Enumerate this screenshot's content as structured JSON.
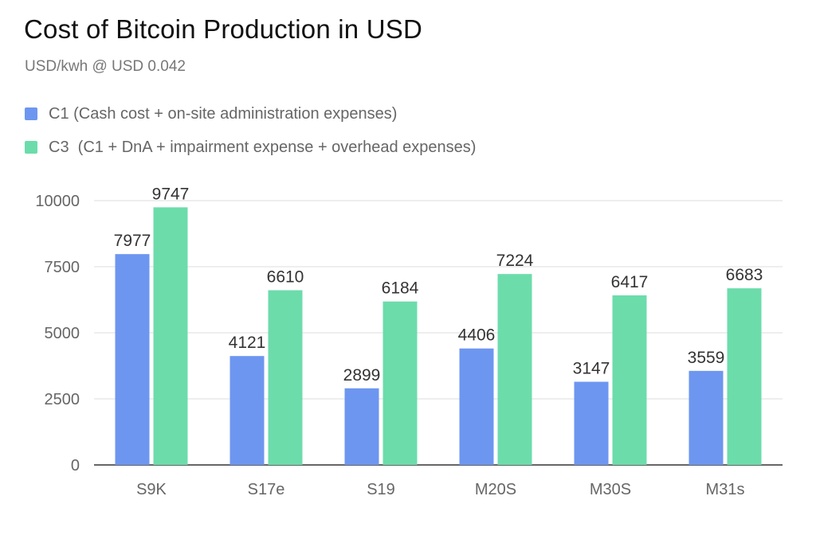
{
  "chart_data": {
    "type": "bar",
    "title": "Cost of Bitcoin Production in USD",
    "subtitle": "USD/kwh @ USD 0.042",
    "xlabel": "",
    "ylabel": "",
    "categories": [
      "S9K",
      "S17e",
      "S19",
      "M20S",
      "M30S",
      "M31s"
    ],
    "series": [
      {
        "name": "C1 (Cash cost + on-site administration expenses)",
        "color": "#6d96f0",
        "values": [
          7977,
          4121,
          2899,
          4406,
          3147,
          3559
        ]
      },
      {
        "name": "C3  (C1 + DnA + impairment expense + overhead expenses)",
        "color": "#6cdcab",
        "values": [
          9747,
          6610,
          6184,
          7224,
          6417,
          6683
        ]
      }
    ],
    "ylim": [
      0,
      10000
    ],
    "yticks": [
      0,
      2500,
      5000,
      7500,
      10000
    ],
    "ytick_labels": [
      "0",
      "2500",
      "5000",
      "7500",
      "10000"
    ],
    "grid": true,
    "legend_position": "top-left"
  }
}
